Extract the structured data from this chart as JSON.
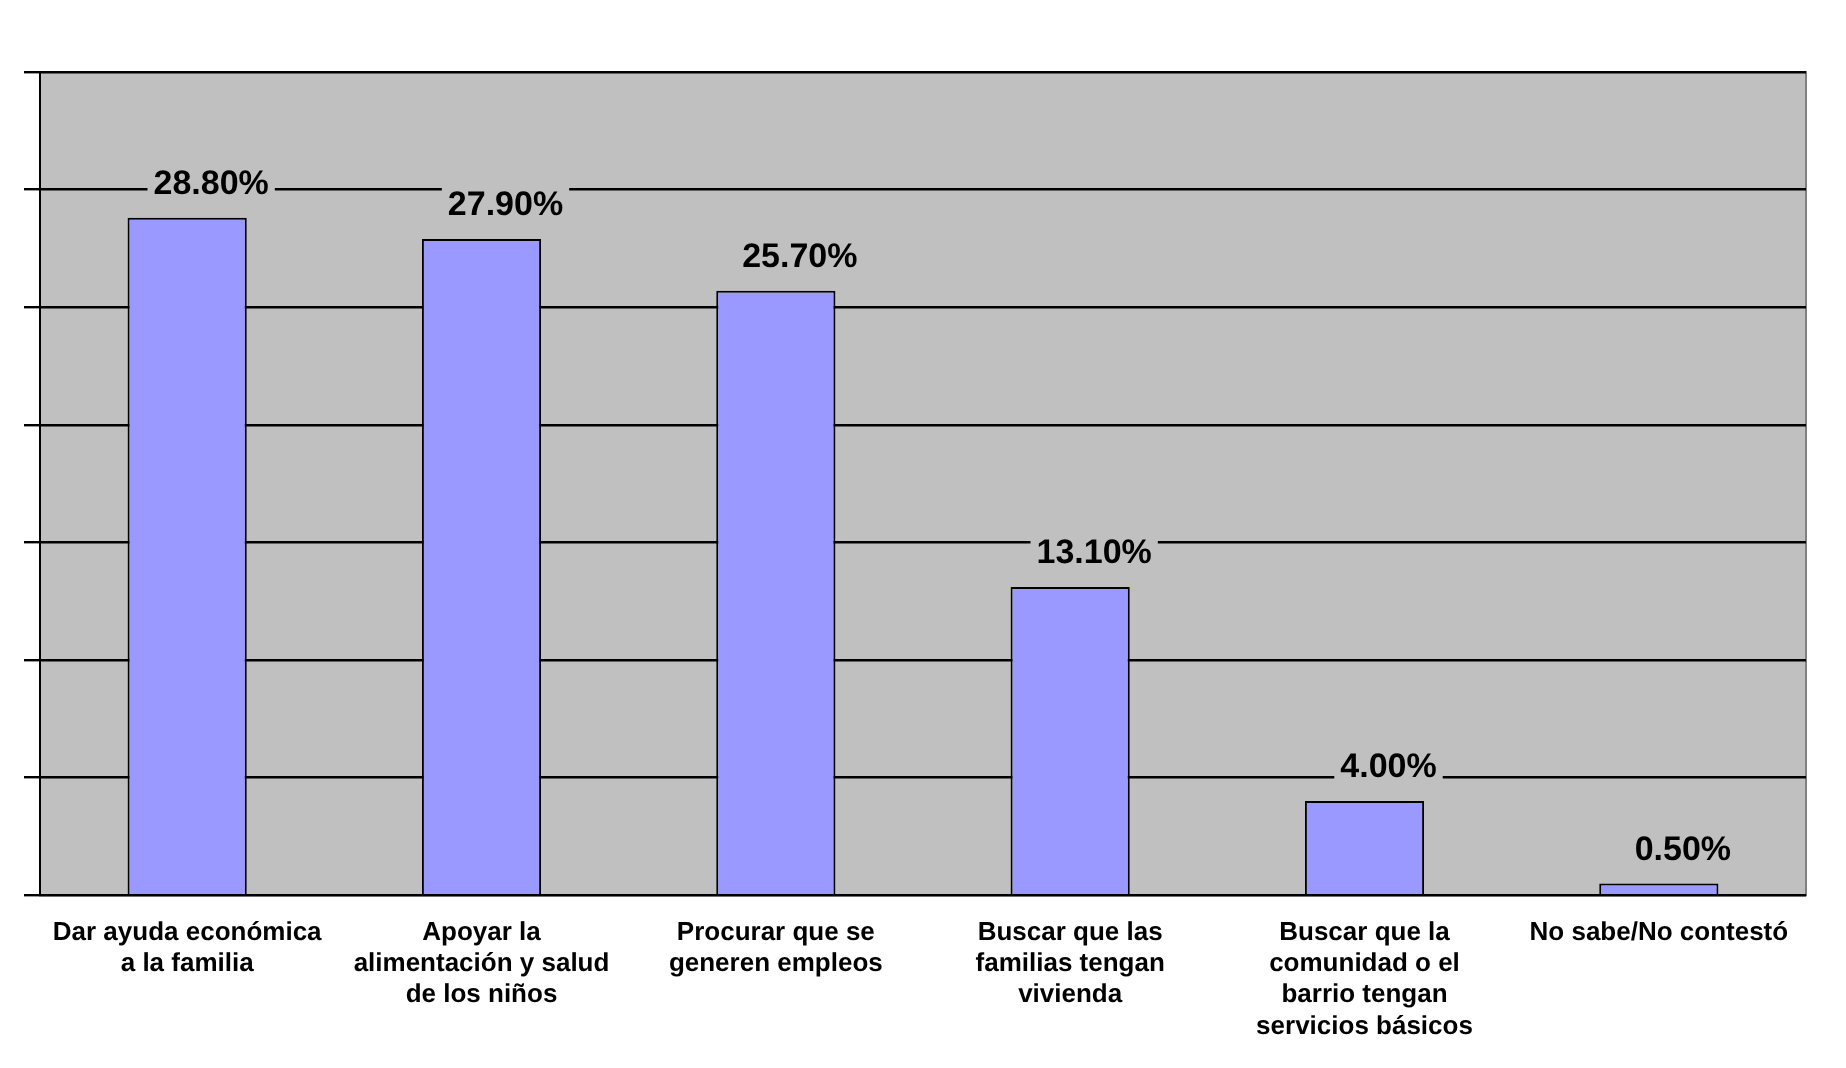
{
  "chart_data": {
    "type": "bar",
    "categories": [
      "Dar ayuda económica a la familia",
      "Apoyar la alimentación y salud de los niños",
      "Procurar que se generen empleos",
      "Buscar que las familias tengan vivienda",
      "Buscar que la comunidad o el barrio tengan servicios básicos",
      "No sabe/No contestó"
    ],
    "values": [
      28.8,
      27.9,
      25.7,
      13.1,
      4.0,
      0.5
    ],
    "value_labels": [
      "28.80%",
      "27.90%",
      "25.70%",
      "13.10%",
      "4.00%",
      "0.50%"
    ],
    "color": "#9999ff",
    "ylim": [
      0,
      35
    ],
    "yticks": [
      {
        "value": 0,
        "label": null
      },
      {
        "value": 5,
        "label": null
      },
      {
        "value": 10,
        "label": null
      },
      {
        "value": 15,
        "label": null
      },
      {
        "value": 20,
        "label": null
      },
      {
        "value": 25,
        "label": null
      },
      {
        "value": 30,
        "label": null
      },
      {
        "value": 35,
        "label": null
      }
    ],
    "grid": "y",
    "tick_labels": "x",
    "legend": false
  }
}
